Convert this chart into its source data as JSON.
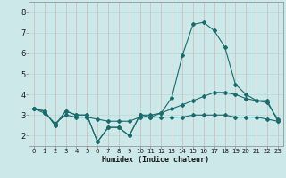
{
  "title": "",
  "xlabel": "Humidex (Indice chaleur)",
  "ylabel": "",
  "bg_color": "#cce8e8",
  "grid_color": "#b8d8d8",
  "line_color": "#1a6b6b",
  "xlim": [
    -0.5,
    23.5
  ],
  "ylim": [
    1.5,
    8.5
  ],
  "xticks": [
    0,
    1,
    2,
    3,
    4,
    5,
    6,
    7,
    8,
    9,
    10,
    11,
    12,
    13,
    14,
    15,
    16,
    17,
    18,
    19,
    20,
    21,
    22,
    23
  ],
  "yticks": [
    2,
    3,
    4,
    5,
    6,
    7,
    8
  ],
  "series": [
    {
      "x": [
        0,
        1,
        2,
        3,
        4,
        5,
        6,
        7,
        8,
        9,
        10,
        11,
        12,
        13,
        14,
        15,
        16,
        17,
        18,
        19,
        20,
        21,
        22,
        23
      ],
      "y": [
        3.3,
        3.2,
        2.5,
        3.2,
        3.0,
        3.0,
        1.7,
        2.4,
        2.4,
        2.0,
        3.0,
        2.9,
        3.1,
        3.85,
        5.9,
        7.4,
        7.5,
        7.1,
        6.3,
        4.5,
        4.0,
        3.7,
        3.7,
        2.7
      ]
    },
    {
      "x": [
        0,
        1,
        2,
        3,
        4,
        5,
        6,
        7,
        8,
        9,
        10,
        11,
        12,
        13,
        14,
        15,
        16,
        17,
        18,
        19,
        20,
        21,
        22,
        23
      ],
      "y": [
        3.3,
        3.2,
        2.5,
        3.2,
        3.0,
        3.0,
        1.7,
        2.4,
        2.4,
        2.0,
        3.0,
        3.0,
        3.1,
        3.3,
        3.5,
        3.7,
        3.9,
        4.1,
        4.1,
        4.0,
        3.8,
        3.7,
        3.6,
        2.8
      ]
    },
    {
      "x": [
        0,
        1,
        2,
        3,
        4,
        5,
        6,
        7,
        8,
        9,
        10,
        11,
        12,
        13,
        14,
        15,
        16,
        17,
        18,
        19,
        20,
        21,
        22,
        23
      ],
      "y": [
        3.3,
        3.1,
        2.6,
        3.0,
        2.9,
        2.9,
        2.8,
        2.7,
        2.7,
        2.7,
        2.9,
        2.9,
        2.9,
        2.9,
        2.9,
        3.0,
        3.0,
        3.0,
        3.0,
        2.9,
        2.9,
        2.9,
        2.8,
        2.7
      ]
    }
  ]
}
